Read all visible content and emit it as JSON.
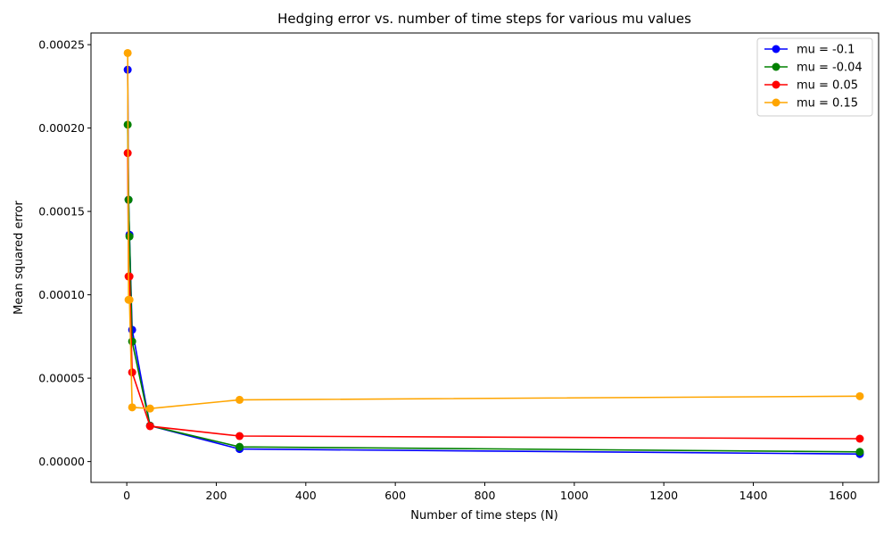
{
  "chart_data": {
    "type": "line",
    "title": "Hedging error vs. number of time steps for various mu values",
    "xlabel": "Number of time steps (N)",
    "ylabel": "Mean squared error",
    "xlim": [
      -80,
      1680
    ],
    "ylim": [
      -1.25e-05,
      0.000257
    ],
    "xticks": [
      0,
      200,
      400,
      600,
      800,
      1000,
      1200,
      1400,
      1600
    ],
    "xtick_labels": [
      "0",
      "200",
      "400",
      "600",
      "800",
      "1000",
      "1200",
      "1400",
      "1600"
    ],
    "yticks": [
      0,
      5e-05,
      0.0001,
      0.00015,
      0.0002,
      0.00025
    ],
    "ytick_labels": [
      "0.00000",
      "0.00005",
      "0.00010",
      "0.00015",
      "0.00020",
      "0.00025"
    ],
    "grid": false,
    "legend_position": "top-right",
    "x": [
      2,
      4,
      6,
      12,
      52,
      252,
      1638
    ],
    "series": [
      {
        "name": "mu = -0.1",
        "color": "#0000ff",
        "values": [
          0.000235,
          0.000157,
          0.000136,
          7.9e-05,
          2.15e-05,
          7.5e-06,
          4.5e-06
        ]
      },
      {
        "name": "mu = -0.04",
        "color": "#008000",
        "values": [
          0.000202,
          0.000157,
          0.000135,
          7.2e-05,
          2.15e-05,
          8.8e-06,
          5.8e-06
        ]
      },
      {
        "name": "mu = 0.05",
        "color": "#ff0000",
        "values": [
          0.000185,
          0.000111,
          0.000111,
          5.35e-05,
          2.12e-05,
          1.53e-05,
          1.37e-05
        ]
      },
      {
        "name": "mu = 0.15",
        "color": "#ffa500",
        "values": [
          0.000245,
          9.7e-05,
          9.7e-05,
          3.25e-05,
          3.18e-05,
          3.7e-05,
          3.92e-05
        ]
      }
    ]
  }
}
